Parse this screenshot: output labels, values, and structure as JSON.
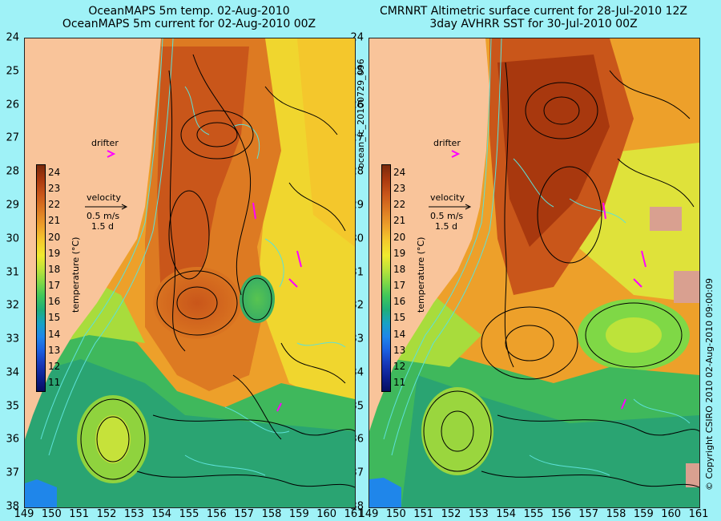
{
  "left_panel": {
    "title_line1": "OceanMAPS 5m temp. 02-Aug-2010",
    "title_line2": "OceanMAPS 5m current for 02-Aug-2010 00Z",
    "drifter_label": "drifter",
    "velocity_label": "velocity",
    "velocity_scale": "0.5 m/s",
    "velocity_days": "1.5 d"
  },
  "right_panel": {
    "title_line1": "CMRNRT Altimetric surface current for 28-Jul-2010 12Z",
    "title_line2": "3day AVHRR SST for 30-Jul-2010 00Z",
    "drifter_label": "drifter",
    "velocity_label": "velocity",
    "velocity_scale": "0.5 m/s",
    "velocity_days": "1.5 d"
  },
  "colorbar": {
    "title": "temperature (°C)",
    "ticks": [
      "24",
      "23",
      "22",
      "21",
      "20",
      "19",
      "18",
      "17",
      "16",
      "15",
      "14",
      "13",
      "12",
      "11"
    ]
  },
  "y_axis": {
    "labels": [
      "24",
      "25",
      "26",
      "27",
      "28",
      "29",
      "30",
      "31",
      "32",
      "33",
      "34",
      "35",
      "36",
      "37",
      "38"
    ]
  },
  "x_axis": {
    "labels": [
      "149",
      "150",
      "151",
      "152",
      "153",
      "154",
      "155",
      "156",
      "157",
      "158",
      "159",
      "160",
      "161"
    ]
  },
  "side_text": {
    "file_id": "ocean_fc_20100729_096",
    "copyright": "© Copyright CSIRO 2010   02-Aug-2010 09:00:09"
  },
  "colors": {
    "background": "#9ff2f7",
    "land": "#f9c49a",
    "drifter": "#ff00ff",
    "contour": "#5de1d8"
  }
}
